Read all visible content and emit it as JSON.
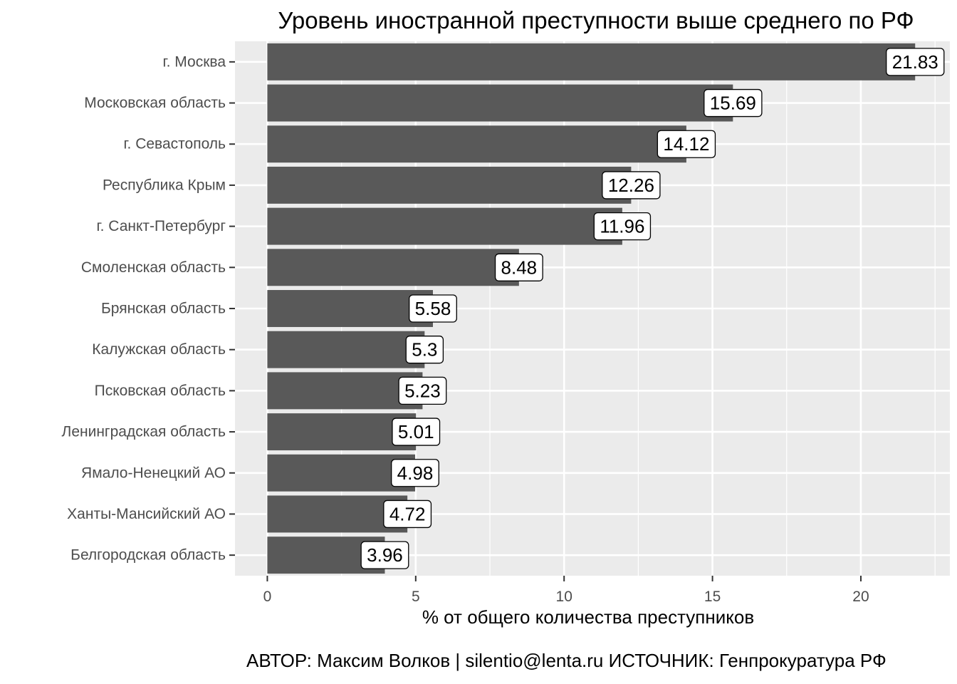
{
  "chart_data": {
    "type": "bar",
    "orientation": "horizontal",
    "title": "Уровень иностранной преступности выше среднего по РФ",
    "xlabel": "% от общего количества преступников",
    "ylabel": "",
    "categories": [
      "г. Москва",
      "Московская область",
      "г. Севастополь",
      "Республика Крым",
      "г. Санкт-Петербург",
      "Смоленская область",
      "Брянская область",
      "Калужская область",
      "Псковская область",
      "Ленинградская область",
      "Ямало-Ненецкий АО",
      "Ханты-Мансийский АО",
      "Белгородская область"
    ],
    "values": [
      21.83,
      15.69,
      14.12,
      12.26,
      11.96,
      8.48,
      5.58,
      5.3,
      5.23,
      5.01,
      4.98,
      4.72,
      3.96
    ],
    "data_labels": [
      "21.83",
      "15.69",
      "14.12",
      "12.26",
      "11.96",
      "8.48",
      "5.58",
      "5.3",
      "5.23",
      "5.01",
      "4.98",
      "4.72",
      "3.96"
    ],
    "xlim": [
      -1.09,
      23.0
    ],
    "xticks": [
      0,
      5,
      10,
      15,
      20
    ],
    "xtick_labels": [
      "0",
      "5",
      "10",
      "15",
      "20"
    ],
    "grid": true,
    "legend": "none",
    "colors": {
      "bar": "#595959",
      "panel_background": "#ebebeb",
      "grid": "#ffffff",
      "axis_text": "#4d4d4d",
      "label_box": "#ffffff",
      "label_border": "#000000"
    },
    "caption": "АВТОР: Максим Волков | silentio@lenta.ru ИСТОЧНИК: Генпрокуратура РФ"
  }
}
